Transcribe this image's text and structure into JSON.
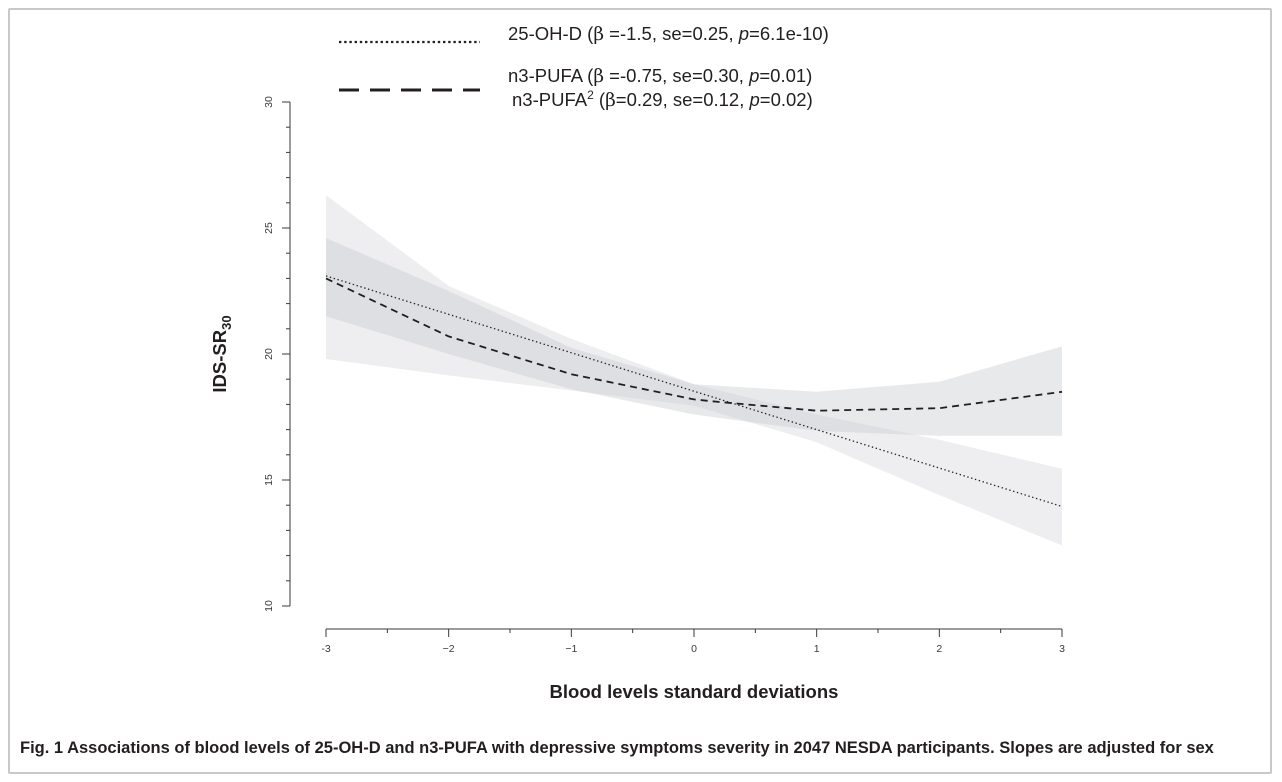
{
  "figure": {
    "caption_label": "Fig. 1",
    "caption_text": "Associations of blood levels of 25-OH-D and n3-PUFA with depressive symptoms severity in 2047 NESDA participants. Slopes are adjusted for sex"
  },
  "chart_data": {
    "type": "line",
    "title": "",
    "xlabel": "Blood levels standard deviations",
    "ylabel": "IDS-SR",
    "ylabel_sub": "30",
    "xlim": [
      -3,
      3
    ],
    "ylim": [
      10,
      30
    ],
    "xticks": [
      -3,
      -2,
      -1,
      0,
      1,
      2,
      3
    ],
    "xtick_labels": [
      "-3",
      "−2",
      "−1",
      "0",
      "1",
      "2",
      "3"
    ],
    "yticks": [
      10,
      15,
      20,
      25,
      30
    ],
    "ytick_labels": [
      "10",
      "15",
      "20",
      "25",
      "30"
    ],
    "grid": false,
    "legend": {
      "placement": "top",
      "entries": [
        {
          "series": "25-OH-D",
          "lines": [
            [
              {
                "t": "25-OH-D ("
              },
              {
                "t": "β",
                "s": "greek"
              },
              {
                "t": " =-1.5, se=0.25, "
              },
              {
                "t": "p",
                "s": "italic"
              },
              {
                "t": "=6.1e-10)"
              }
            ]
          ]
        },
        {
          "series": "n3-PUFA",
          "lines": [
            [
              {
                "t": "n3-PUFA ("
              },
              {
                "t": "β",
                "s": "greek"
              },
              {
                "t": " =-0.75, se=0.30, "
              },
              {
                "t": "p",
                "s": "italic"
              },
              {
                "t": "=0.01)"
              }
            ],
            [
              {
                "t": "n3-PUFA"
              },
              {
                "t": "2",
                "s": "sup"
              },
              {
                "t": " ("
              },
              {
                "t": "β",
                "s": "greek"
              },
              {
                "t": "=0.29, se=0.12, "
              },
              {
                "t": "p",
                "s": "italic"
              },
              {
                "t": "=0.02)"
              }
            ]
          ]
        }
      ]
    },
    "series": [
      {
        "name": "25-OH-D",
        "line_style": "dotted",
        "x": [
          -3,
          3
        ],
        "y": [
          23.1,
          13.95
        ],
        "ci_x": [
          -3,
          -2,
          -1,
          0,
          1,
          2,
          3
        ],
        "ci_upper": [
          26.3,
          22.7,
          20.6,
          18.8,
          17.6,
          16.6,
          15.45
        ],
        "ci_lower": [
          19.8,
          19.15,
          18.55,
          17.95,
          16.5,
          14.4,
          12.4
        ]
      },
      {
        "name": "n3-PUFA",
        "line_style": "dashed",
        "x": [
          -3,
          -2,
          -1,
          0,
          0.2,
          1,
          2,
          3
        ],
        "y": [
          23.0,
          20.7,
          19.2,
          18.2,
          18.1,
          17.75,
          17.85,
          18.5
        ],
        "ci_x": [
          -3,
          -2,
          -1,
          0,
          1,
          2,
          3
        ],
        "ci_upper": [
          24.6,
          22.5,
          20.25,
          18.8,
          18.5,
          18.9,
          20.3
        ],
        "ci_lower": [
          21.5,
          20.0,
          18.6,
          17.6,
          16.95,
          16.75,
          16.75
        ]
      }
    ],
    "colors": {
      "band": "#c9cbcf",
      "line": "#231f20",
      "axis": "#3a3a3a"
    }
  }
}
